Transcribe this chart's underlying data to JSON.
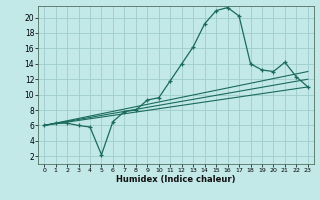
{
  "title": "",
  "xlabel": "Humidex (Indice chaleur)",
  "bg_color": "#c2e8e8",
  "grid_color": "#a0cccc",
  "line_color": "#1a6b5a",
  "xlim": [
    -0.5,
    23.5
  ],
  "ylim": [
    1.0,
    21.5
  ],
  "yticks": [
    2,
    4,
    6,
    8,
    10,
    12,
    14,
    16,
    18,
    20
  ],
  "xticks": [
    0,
    1,
    2,
    3,
    4,
    5,
    6,
    7,
    8,
    9,
    10,
    11,
    12,
    13,
    14,
    15,
    16,
    17,
    18,
    19,
    20,
    21,
    22,
    23
  ],
  "curve1_x": [
    0,
    1,
    2,
    3,
    4,
    5,
    6,
    7,
    8,
    9,
    10,
    11,
    12,
    13,
    14,
    15,
    16,
    17,
    18,
    19,
    20,
    21,
    22,
    23
  ],
  "curve1_y": [
    6.0,
    6.3,
    6.3,
    6.0,
    5.8,
    2.2,
    6.5,
    7.8,
    8.0,
    9.3,
    9.6,
    11.8,
    14.0,
    16.2,
    19.2,
    20.9,
    21.3,
    20.2,
    14.0,
    13.2,
    13.0,
    14.2,
    12.3,
    11.0
  ],
  "curve2_x": [
    0,
    23
  ],
  "curve2_y": [
    6.0,
    13.0
  ],
  "curve3_x": [
    0,
    23
  ],
  "curve3_y": [
    6.0,
    12.0
  ],
  "curve4_x": [
    0,
    23
  ],
  "curve4_y": [
    6.0,
    11.0
  ]
}
